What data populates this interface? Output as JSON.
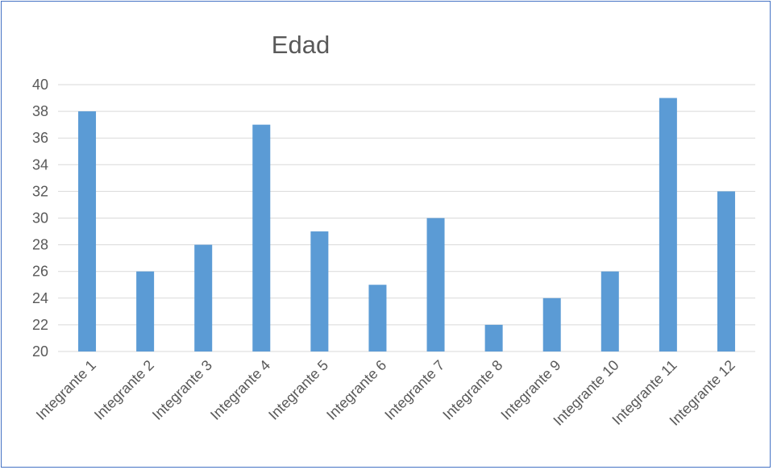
{
  "chart_data": {
    "type": "bar",
    "title": "Edad",
    "xlabel": "",
    "ylabel": "",
    "categories": [
      "Integrante 1",
      "Integrante 2",
      "Integrante 3",
      "Integrante 4",
      "Integrante 5",
      "Integrante 6",
      "Integrante 7",
      "Integrante 8",
      "Integrante 9",
      "Integrante 10",
      "Integrante 11",
      "Integrante 12"
    ],
    "values": [
      38,
      26,
      28,
      37,
      29,
      25,
      30,
      22,
      24,
      26,
      39,
      32
    ],
    "ylim": [
      20,
      40
    ],
    "yticks": [
      20,
      22,
      24,
      26,
      28,
      30,
      32,
      34,
      36,
      38,
      40
    ],
    "grid": true,
    "legend": "none",
    "colors": {
      "bar": "#5b9bd5",
      "border": "#4472c4",
      "grid": "#d9d9d9",
      "text": "#595959"
    }
  }
}
